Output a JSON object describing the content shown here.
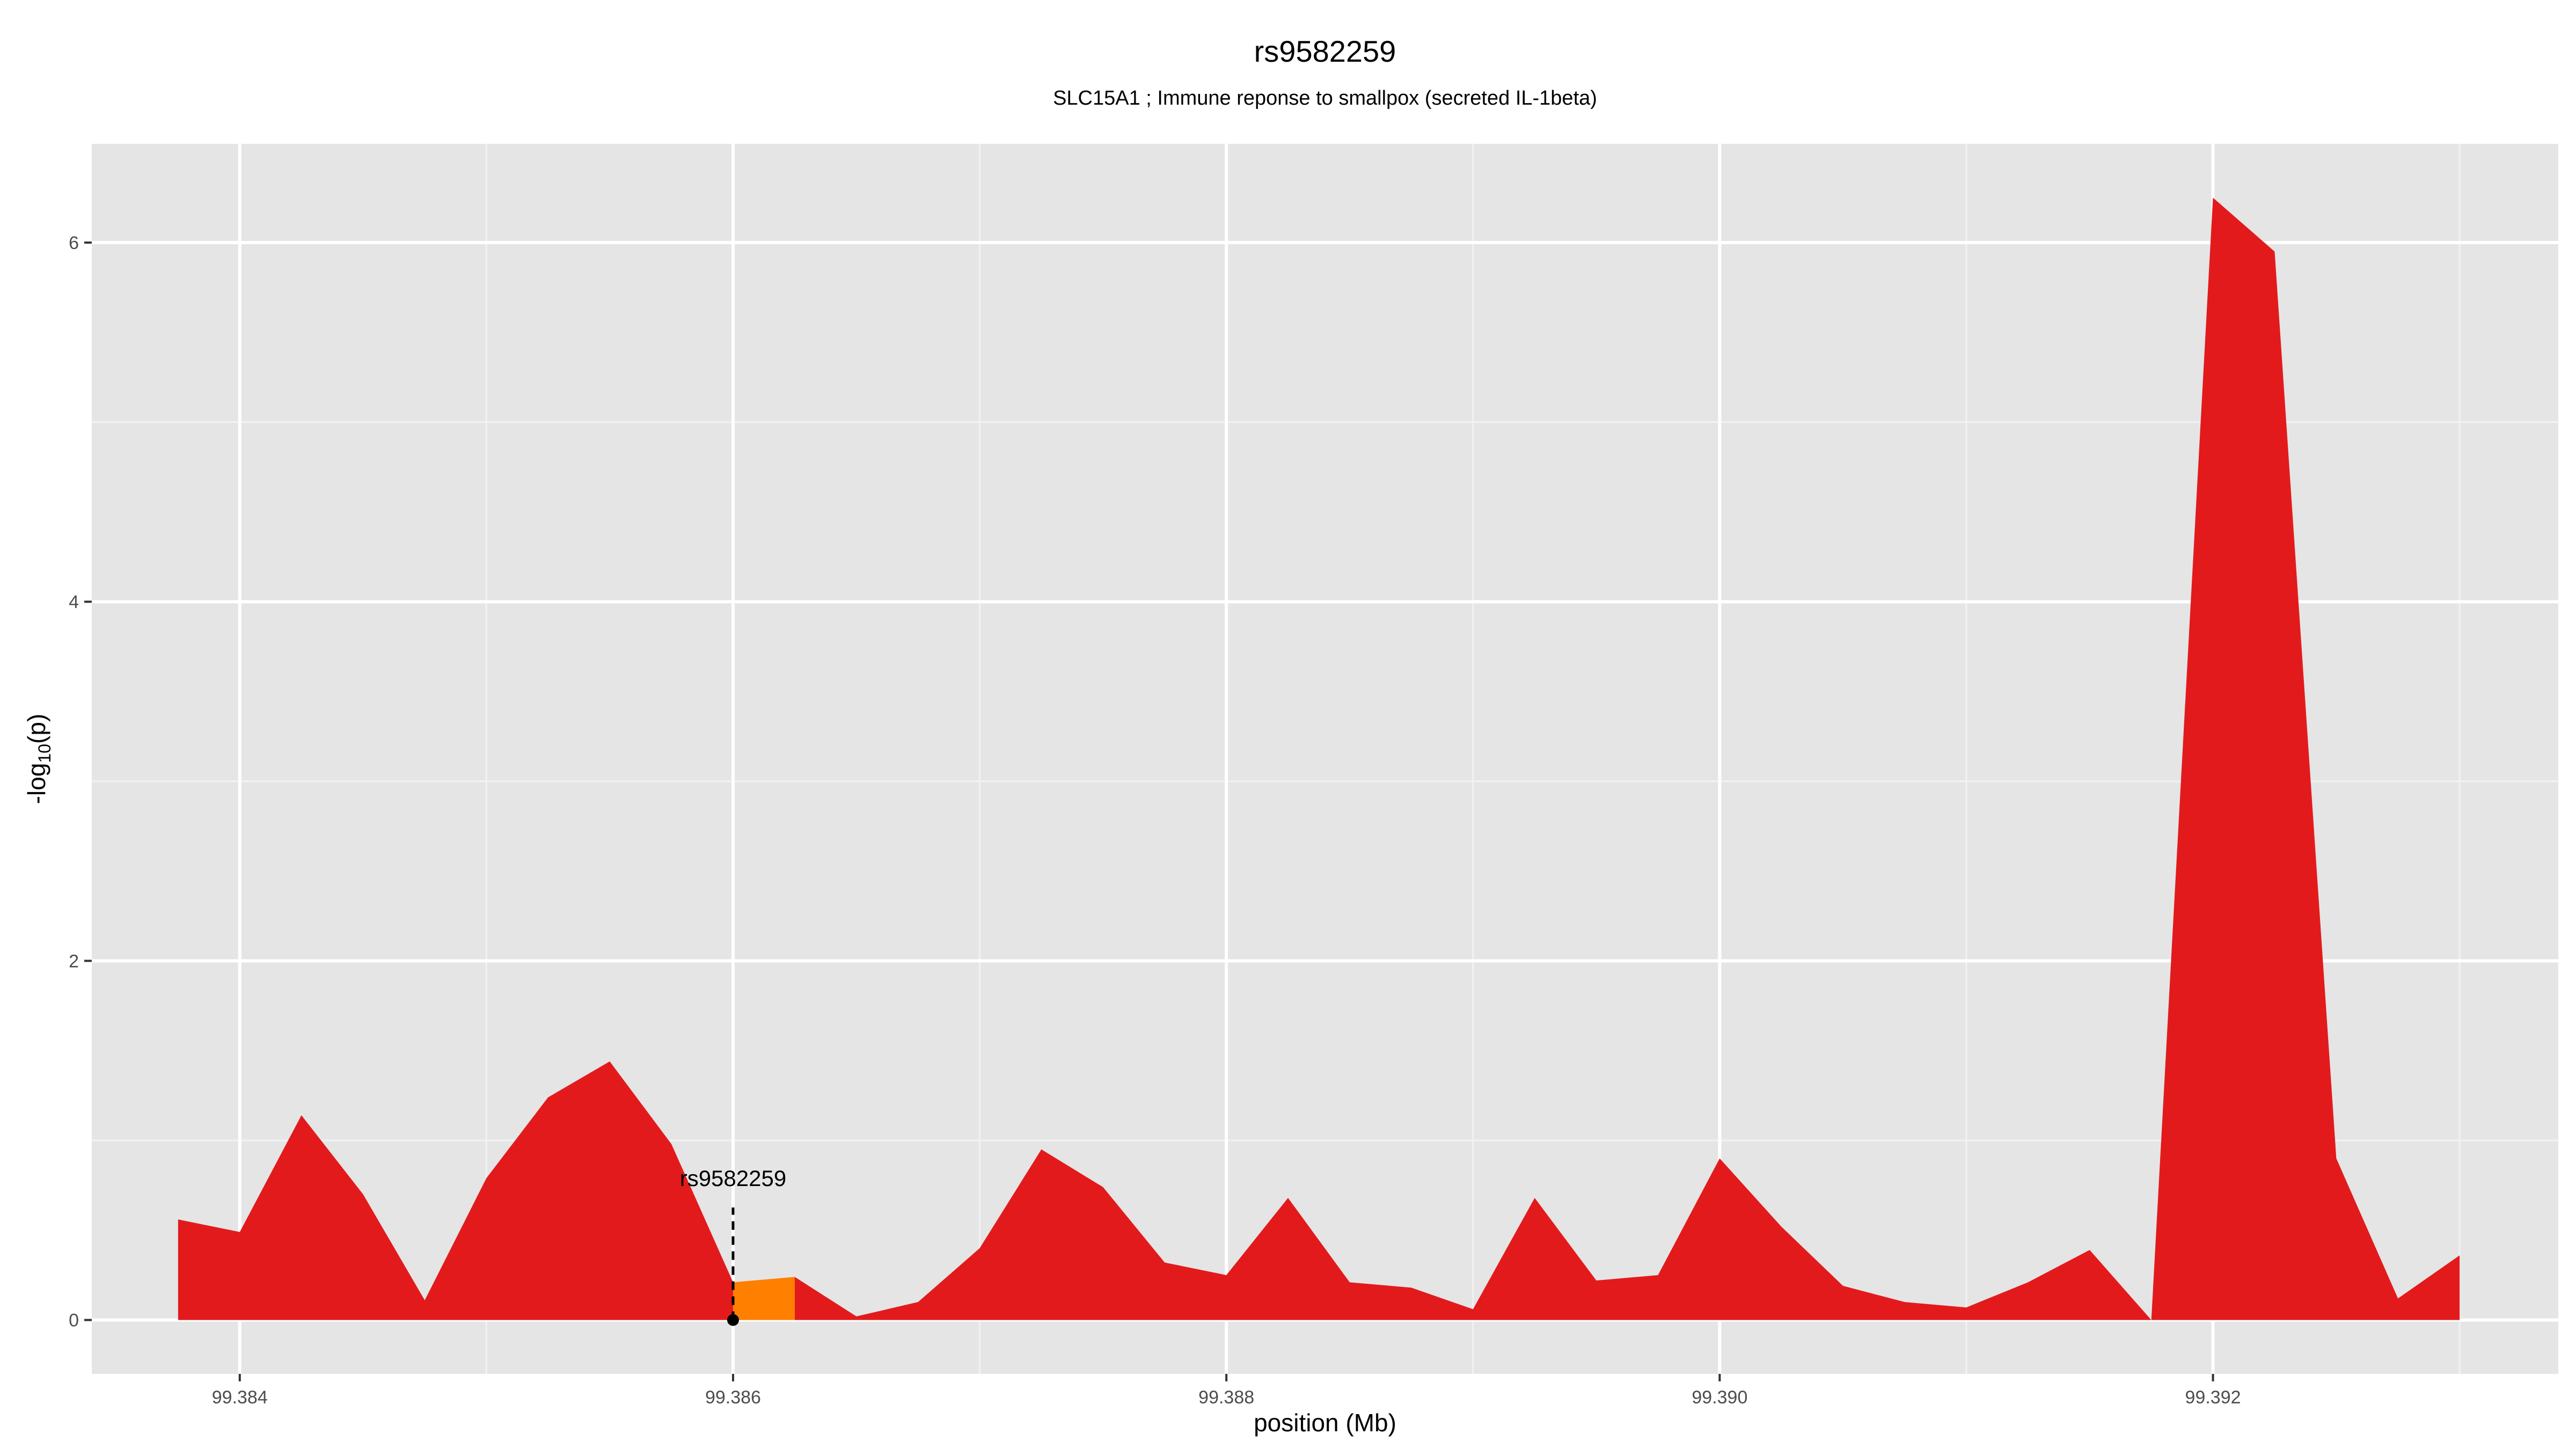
{
  "chart_data": {
    "type": "area",
    "title": "rs9582259",
    "subtitle": "SLC15A1 ; Immune reponse to smallpox (secreted IL-1beta)",
    "xlabel": "position (Mb)",
    "ylabel": {
      "prefix": "-log",
      "sub": "10",
      "suffix": "(p)"
    },
    "xlim": [
      99.3834,
      99.3934
    ],
    "ylim": [
      -0.3,
      6.55
    ],
    "x_ticks": [
      {
        "value": 99.384,
        "label": "99.384"
      },
      {
        "value": 99.386,
        "label": "99.386"
      },
      {
        "value": 99.388,
        "label": "99.388"
      },
      {
        "value": 99.39,
        "label": "99.390"
      },
      {
        "value": 99.392,
        "label": "99.392"
      }
    ],
    "y_ticks": [
      {
        "value": 0,
        "label": "0"
      },
      {
        "value": 2,
        "label": "2"
      },
      {
        "value": 4,
        "label": "4"
      },
      {
        "value": 6,
        "label": "6"
      }
    ],
    "grid": true,
    "series": [
      {
        "color": "#e31a1c",
        "points": [
          [
            99.38375,
            0.56
          ],
          [
            99.384,
            0.49
          ],
          [
            99.38425,
            1.14
          ],
          [
            99.3845,
            0.7
          ],
          [
            99.38475,
            0.11
          ],
          [
            99.385,
            0.79
          ],
          [
            99.38525,
            1.24
          ],
          [
            99.3855,
            1.44
          ],
          [
            99.38575,
            0.98
          ],
          [
            99.386,
            0.21
          ]
        ]
      },
      {
        "color": "#ff7f00",
        "points": [
          [
            99.386,
            0.21
          ],
          [
            99.38625,
            0.24
          ]
        ]
      },
      {
        "color": "#e31a1c",
        "points": [
          [
            99.38625,
            0.24
          ],
          [
            99.3865,
            0.02
          ],
          [
            99.38675,
            0.1
          ],
          [
            99.387,
            0.4
          ],
          [
            99.38725,
            0.95
          ],
          [
            99.3875,
            0.74
          ],
          [
            99.38775,
            0.32
          ],
          [
            99.388,
            0.25
          ],
          [
            99.38825,
            0.68
          ],
          [
            99.3885,
            0.21
          ],
          [
            99.38875,
            0.18
          ],
          [
            99.389,
            0.06
          ],
          [
            99.38925,
            0.68
          ],
          [
            99.3895,
            0.22
          ],
          [
            99.38975,
            0.25
          ],
          [
            99.39,
            0.9
          ],
          [
            99.39025,
            0.52
          ],
          [
            99.3905,
            0.19
          ],
          [
            99.39075,
            0.1
          ],
          [
            99.391,
            0.07
          ],
          [
            99.39125,
            0.21
          ],
          [
            99.3915,
            0.39
          ],
          [
            99.39175,
            0.0
          ],
          [
            99.392,
            6.25
          ],
          [
            99.39225,
            5.95
          ],
          [
            99.3925,
            0.9
          ],
          [
            99.39275,
            0.12
          ],
          [
            99.393,
            0.36
          ]
        ]
      }
    ],
    "highlight_snp": {
      "label": "rs9582259",
      "x": 99.386,
      "y": 0
    }
  }
}
